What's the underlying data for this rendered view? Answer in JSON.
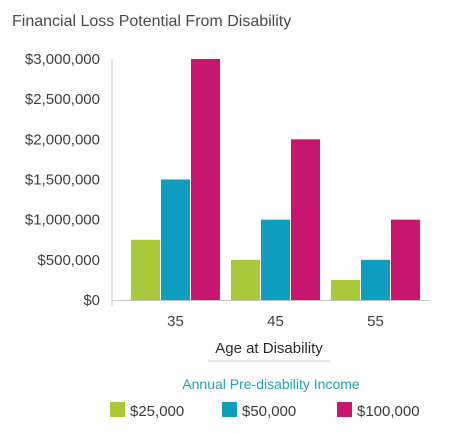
{
  "chart_data": {
    "type": "bar",
    "title": "Financial Loss Potential From Disability",
    "xlabel": "Age at Disability",
    "ylabel": "",
    "categories": [
      "35",
      "45",
      "55"
    ],
    "series": [
      {
        "name": "$25,000",
        "values": [
          750000,
          500000,
          250000
        ],
        "color": "#a8c93a"
      },
      {
        "name": "$50,000",
        "values": [
          1500000,
          1000000,
          500000
        ],
        "color": "#0f9dbf"
      },
      {
        "name": "$100,000",
        "values": [
          3000000,
          2000000,
          1000000
        ],
        "color": "#c8166e"
      }
    ],
    "ylim": [
      0,
      3000000
    ],
    "yticks": [
      0,
      500000,
      1000000,
      1500000,
      2000000,
      2500000,
      3000000
    ],
    "ytick_labels": [
      "$0",
      "$500,000",
      "$1,000,000",
      "$1,500,000",
      "$2,000,000",
      "$2,500,000",
      "$3,000,000"
    ],
    "legend_title": "Annual Pre-disability Income",
    "legend_position": "bottom",
    "grid": false
  }
}
